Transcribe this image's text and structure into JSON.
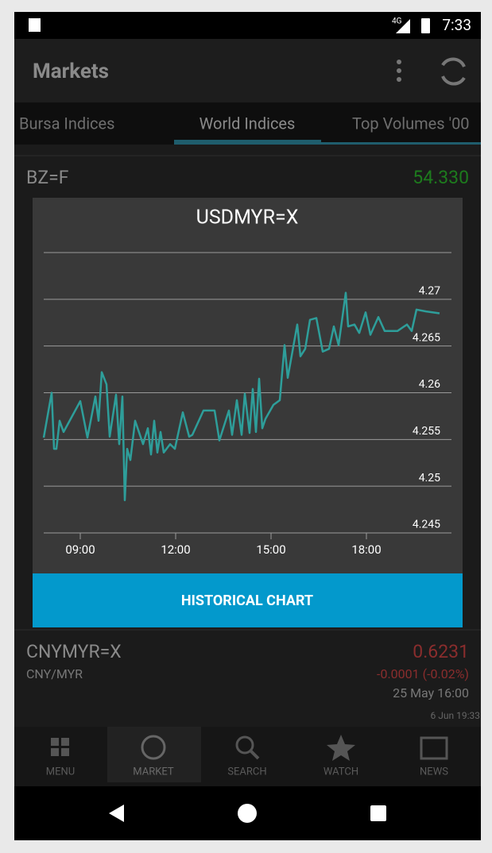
{
  "status_bar": {
    "network": "4G",
    "time": "7:33"
  },
  "app_bar": {
    "title": "Markets"
  },
  "tabs": [
    "Bursa Indices",
    "World Indices",
    "Top Volumes '00"
  ],
  "list": [
    {
      "symbol": "BZ=F",
      "price": "54.330"
    },
    {
      "symbol": "CNYMYR=X",
      "name": "CNY/MYR",
      "price": "0.6231",
      "change": "-0.0001 (-0.02%)",
      "date": "25 May 16:00"
    }
  ],
  "updated": "6 Jun 19:33",
  "dialog": {
    "title": "USDMYR=X",
    "chart": {
      "type": "line",
      "color": "#2e9e9a",
      "x": [
        7.85,
        8.1,
        8.175,
        8.25,
        8.35,
        8.475,
        9,
        9.225,
        9.475,
        9.575,
        9.675,
        9.825,
        9.925,
        10.125,
        10.225,
        10.325,
        10.4,
        10.475,
        10.575,
        10.725,
        10.975,
        11.125,
        11.225,
        11.325,
        11.425,
        11.525,
        11.625,
        11.825,
        11.975,
        12.225,
        12.425,
        12.525,
        12.875,
        13.225,
        13.375,
        13.675,
        13.775,
        13.925,
        14.075,
        14.175,
        14.325,
        14.425,
        14.525,
        14.625,
        14.725,
        14.825,
        15.075,
        15.275,
        15.425,
        15.525,
        15.825,
        15.925,
        16.075,
        16.225,
        16.425,
        16.625,
        16.825,
        16.975,
        17.125,
        17.35,
        17.425,
        17.625,
        17.775,
        17.975,
        18.125,
        18.375,
        18.575,
        18.975,
        19.275,
        19.425,
        19.575,
        19.875,
        20.3
      ],
      "values": [
        4.2552,
        4.26,
        4.254,
        4.254,
        4.257,
        4.2558,
        4.2591,
        4.2552,
        4.2596,
        4.257,
        4.2622,
        4.2609,
        4.2553,
        4.2598,
        4.2545,
        4.2596,
        4.2485,
        4.254,
        4.2528,
        4.257,
        4.2545,
        4.2562,
        4.2534,
        4.257,
        4.2536,
        4.2558,
        4.2536,
        4.2545,
        4.254,
        4.2579,
        4.2553,
        4.2555,
        4.2581,
        4.2581,
        4.2549,
        4.2581,
        4.2555,
        4.2592,
        4.2555,
        4.2599,
        4.2557,
        4.2604,
        4.2558,
        4.2615,
        4.2562,
        4.2572,
        4.2587,
        4.2592,
        4.2651,
        4.2616,
        4.2673,
        4.2639,
        4.2647,
        4.2678,
        4.268,
        4.2644,
        4.2647,
        4.2671,
        4.2651,
        4.2707,
        4.2671,
        4.2673,
        4.2664,
        4.2686,
        4.2662,
        4.2681,
        4.2666,
        4.2666,
        4.2673,
        4.2666,
        4.2689,
        4.2687,
        4.2685
      ],
      "xlim": [
        7.85,
        20.675
      ],
      "xticks": [
        {
          "value": 9,
          "label": "09:00"
        },
        {
          "value": 12,
          "label": "12:00"
        },
        {
          "value": 15,
          "label": "15:00"
        },
        {
          "value": 18,
          "label": "18:00"
        }
      ],
      "ylim": [
        4.245,
        4.275
      ],
      "yticks": [
        4.245,
        4.25,
        4.255,
        4.26,
        4.265,
        4.27
      ],
      "grid": true
    },
    "button": "HISTORICAL CHART"
  },
  "nav": [
    "MENU",
    "MARKET",
    "SEARCH",
    "WATCH",
    "NEWS"
  ]
}
